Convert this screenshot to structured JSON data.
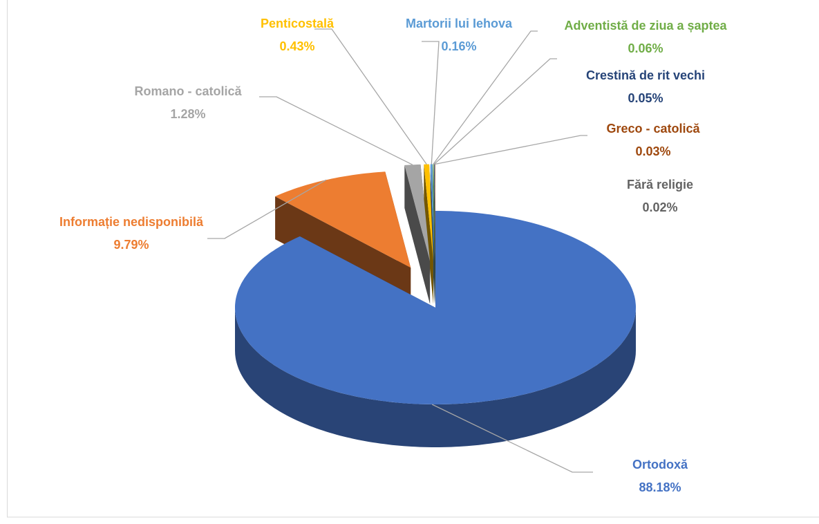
{
  "chart_data": {
    "type": "pie3d",
    "categories": [
      "Ortodoxă",
      "Informație nedisponibilă",
      "Romano - catolică",
      "Penticostală",
      "Martorii lui Iehova",
      "Adventistă de ziua a șaptea",
      "Crestină de rit vechi",
      "Greco - catolică",
      "Fără religie"
    ],
    "values": [
      88.18,
      9.79,
      1.28,
      0.43,
      0.16,
      0.06,
      0.05,
      0.03,
      0.02
    ],
    "value_labels": [
      "88.18%",
      "9.79%",
      "1.28%",
      "0.43%",
      "0.16%",
      "0.06%",
      "0.05%",
      "0.03%",
      "0.02%"
    ],
    "colors": [
      "#4472c4",
      "#ed7d31",
      "#a5a5a5",
      "#ffc000",
      "#5b9bd5",
      "#70ad47",
      "#264478",
      "#9e480e",
      "#636363"
    ]
  }
}
